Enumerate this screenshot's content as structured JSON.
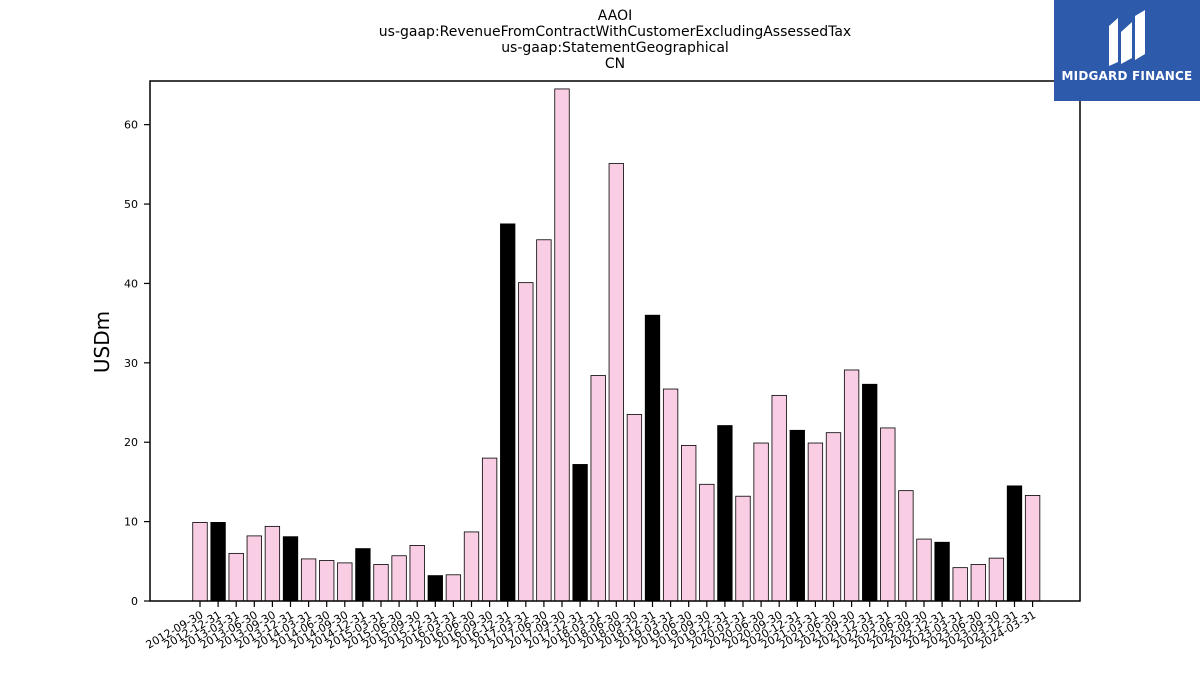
{
  "chart_data": {
    "type": "bar",
    "title_lines": [
      "AAOI",
      "us-gaap:RevenueFromContractWithCustomerExcludingAssessedTax",
      "us-gaap:StatementGeographical",
      "CN"
    ],
    "ylabel": "USDm",
    "xlabel": "",
    "ylim": [
      0,
      65.5
    ],
    "yticks": [
      0,
      10,
      20,
      30,
      40,
      50,
      60
    ],
    "categories": [
      "2012-09-30",
      "2012-12-31",
      "2013-03-31",
      "2013-06-30",
      "2013-09-30",
      "2013-12-31",
      "2014-03-31",
      "2014-06-30",
      "2014-09-30",
      "2014-12-31",
      "2015-03-31",
      "2015-06-30",
      "2015-09-30",
      "2015-12-31",
      "2016-03-31",
      "2016-06-30",
      "2016-09-30",
      "2016-12-31",
      "2017-03-31",
      "2017-06-30",
      "2017-09-30",
      "2017-12-31",
      "2018-03-31",
      "2018-06-30",
      "2018-09-30",
      "2018-12-31",
      "2019-03-31",
      "2019-06-30",
      "2019-09-30",
      "2019-12-31",
      "2020-03-31",
      "2020-06-30",
      "2020-09-30",
      "2020-12-31",
      "2021-03-31",
      "2021-06-30",
      "2021-09-30",
      "2021-12-31",
      "2022-03-31",
      "2022-06-30",
      "2022-09-30",
      "2022-12-31",
      "2023-03-31",
      "2023-06-30",
      "2023-09-30",
      "2023-12-31",
      "2024-03-31"
    ],
    "values": [
      9.9,
      9.9,
      6.0,
      8.2,
      9.4,
      8.1,
      5.3,
      5.1,
      4.8,
      6.6,
      4.6,
      5.7,
      7.0,
      3.2,
      3.3,
      8.7,
      18.0,
      47.5,
      40.1,
      45.5,
      64.5,
      17.2,
      28.4,
      55.1,
      23.5,
      36.0,
      26.7,
      19.6,
      14.7,
      22.1,
      13.2,
      19.9,
      25.9,
      21.5,
      19.9,
      21.2,
      29.1,
      27.3,
      21.8,
      13.9,
      7.8,
      7.4,
      4.2,
      4.6,
      5.4,
      14.5,
      13.3
    ],
    "highlighted": [
      false,
      true,
      false,
      false,
      false,
      true,
      false,
      false,
      false,
      true,
      false,
      false,
      false,
      true,
      false,
      false,
      false,
      true,
      false,
      false,
      false,
      true,
      false,
      false,
      false,
      true,
      false,
      false,
      false,
      true,
      false,
      false,
      false,
      true,
      false,
      false,
      false,
      true,
      false,
      false,
      false,
      true,
      false,
      false,
      false,
      true,
      false
    ],
    "colors": {
      "bar": "#f9cde3",
      "highlight": "#000000",
      "edge": "#000000"
    },
    "grid": false,
    "legend": "none"
  },
  "logo": {
    "text": "MIDGARD FINANCE",
    "background": "#2e5aac"
  }
}
